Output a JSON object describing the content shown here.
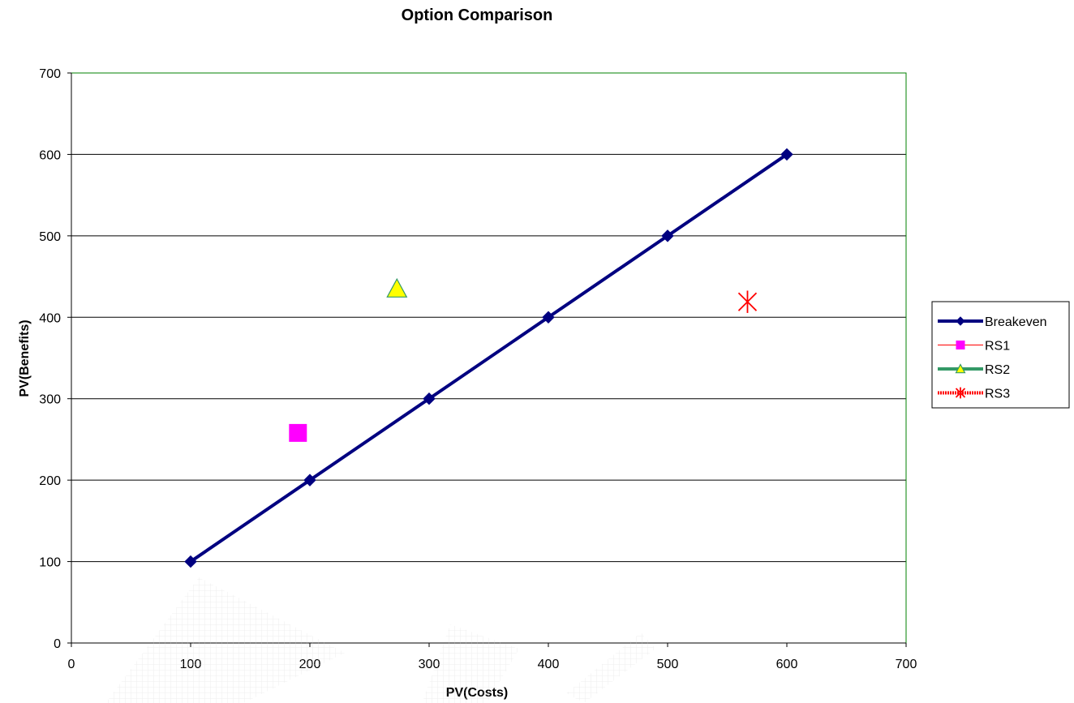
{
  "chart_data": {
    "type": "scatter",
    "title": "Option Comparison",
    "xlabel": "PV(Costs)",
    "ylabel": "PV(Benefits)",
    "xlim": [
      0,
      700
    ],
    "ylim": [
      0,
      700
    ],
    "xticks": [
      0,
      100,
      200,
      300,
      400,
      500,
      600,
      700
    ],
    "yticks": [
      0,
      100,
      200,
      300,
      400,
      500,
      600,
      700
    ],
    "grid": "horizontal",
    "legend_position": "right",
    "series": [
      {
        "name": "Breakeven",
        "marker": "diamond",
        "color": "#000080",
        "line": true,
        "points": [
          [
            100,
            100
          ],
          [
            200,
            200
          ],
          [
            300,
            300
          ],
          [
            400,
            400
          ],
          [
            500,
            500
          ],
          [
            600,
            600
          ]
        ]
      },
      {
        "name": "RS1",
        "marker": "square",
        "color": "#FF00FF",
        "line_color": "#FF0000",
        "line": false,
        "points": [
          [
            190,
            258
          ]
        ]
      },
      {
        "name": "RS2",
        "marker": "triangle",
        "color": "#FFFF00",
        "line_color": "#339966",
        "line": false,
        "points": [
          [
            273,
            435
          ]
        ]
      },
      {
        "name": "RS3",
        "marker": "star",
        "color": "#FF0000",
        "line_color": "#FF0000",
        "line": false,
        "points": [
          [
            567,
            419
          ]
        ]
      }
    ]
  }
}
